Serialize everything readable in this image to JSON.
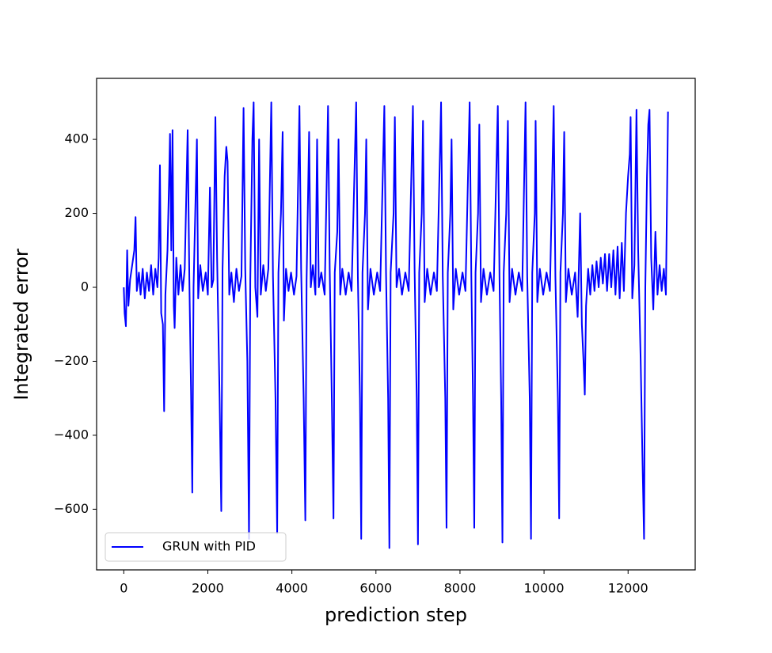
{
  "chart_data": {
    "type": "line",
    "xlabel": "prediction step",
    "ylabel": "Integrated error",
    "x": [
      0,
      20,
      50,
      80,
      110,
      150,
      200,
      250,
      280,
      310,
      360,
      400,
      450,
      500,
      550,
      600,
      650,
      700,
      750,
      800,
      830,
      860,
      890,
      930,
      960,
      990,
      1040,
      1080,
      1100,
      1130,
      1160,
      1190,
      1210,
      1250,
      1300,
      1350,
      1400,
      1450,
      1520,
      1560,
      1600,
      1630,
      1660,
      1700,
      1740,
      1770,
      1820,
      1880,
      1950,
      2000,
      2050,
      2090,
      2130,
      2180,
      2220,
      2280,
      2320,
      2350,
      2400,
      2440,
      2470,
      2510,
      2560,
      2620,
      2680,
      2740,
      2800,
      2850,
      2890,
      2940,
      2980,
      3010,
      3060,
      3090,
      3130,
      3180,
      3220,
      3260,
      3320,
      3380,
      3440,
      3510,
      3550,
      3610,
      3650,
      3680,
      3740,
      3780,
      3810,
      3860,
      3920,
      3980,
      4050,
      4110,
      4180,
      4220,
      4280,
      4320,
      4350,
      4410,
      4450,
      4500,
      4560,
      4600,
      4640,
      4700,
      4780,
      4860,
      4900,
      4950,
      4990,
      5020,
      5080,
      5110,
      5150,
      5200,
      5280,
      5350,
      5420,
      5530,
      5570,
      5620,
      5650,
      5680,
      5740,
      5770,
      5810,
      5870,
      5950,
      6030,
      6100,
      6200,
      6240,
      6290,
      6320,
      6350,
      6420,
      6450,
      6490,
      6550,
      6620,
      6700,
      6780,
      6880,
      6920,
      6970,
      7000,
      7030,
      7090,
      7120,
      7160,
      7220,
      7300,
      7380,
      7450,
      7550,
      7590,
      7650,
      7680,
      7710,
      7770,
      7800,
      7840,
      7900,
      7980,
      8060,
      8130,
      8230,
      8270,
      8310,
      8340,
      8370,
      8430,
      8460,
      8500,
      8560,
      8640,
      8720,
      8800,
      8900,
      8940,
      8980,
      9010,
      9040,
      9100,
      9140,
      9180,
      9240,
      9320,
      9400,
      9480,
      9560,
      9600,
      9660,
      9690,
      9720,
      9780,
      9800,
      9840,
      9900,
      9980,
      10060,
      10140,
      10230,
      10270,
      10330,
      10360,
      10390,
      10450,
      10480,
      10520,
      10580,
      10660,
      10740,
      10800,
      10860,
      10900,
      10940,
      10970,
      11000,
      11050,
      11100,
      11150,
      11200,
      11250,
      11300,
      11350,
      11400,
      11450,
      11500,
      11550,
      11600,
      11650,
      11700,
      11750,
      11800,
      11850,
      11900,
      11950,
      12000,
      12040,
      12060,
      12100,
      12150,
      12200,
      12240,
      12300,
      12340,
      12380,
      12410,
      12450,
      12480,
      12510,
      12550,
      12600,
      12650,
      12700,
      12750,
      12800,
      12850,
      12900,
      12950
    ],
    "series": [
      {
        "name": "GRUN with PID",
        "color": "#0000ff",
        "values": [
          0,
          -70,
          -105,
          100,
          -50,
          20,
          60,
          100,
          190,
          -10,
          40,
          -20,
          50,
          -30,
          40,
          -10,
          60,
          -20,
          50,
          0,
          80,
          330,
          -70,
          -100,
          -335,
          -20,
          100,
          300,
          415,
          100,
          425,
          -50,
          -110,
          80,
          -20,
          60,
          -10,
          50,
          425,
          20,
          -280,
          -555,
          0,
          200,
          400,
          -30,
          60,
          -10,
          40,
          -20,
          270,
          0,
          20,
          460,
          80,
          -300,
          -605,
          50,
          300,
          380,
          340,
          -20,
          40,
          -40,
          50,
          -10,
          30,
          485,
          50,
          -200,
          -680,
          20,
          400,
          500,
          0,
          -80,
          400,
          -20,
          60,
          -10,
          50,
          500,
          30,
          -300,
          -665,
          40,
          200,
          420,
          -90,
          50,
          -10,
          40,
          -20,
          30,
          490,
          50,
          -300,
          -630,
          20,
          420,
          0,
          60,
          -20,
          400,
          0,
          40,
          -20,
          490,
          50,
          -300,
          -625,
          40,
          150,
          400,
          -20,
          50,
          -20,
          40,
          -10,
          500,
          30,
          -300,
          -680,
          40,
          200,
          400,
          -60,
          50,
          -20,
          40,
          -10,
          490,
          40,
          -300,
          -705,
          40,
          200,
          460,
          0,
          50,
          -20,
          40,
          -10,
          490,
          50,
          -300,
          -695,
          40,
          200,
          450,
          -40,
          50,
          -20,
          40,
          -10,
          500,
          30,
          -300,
          -650,
          40,
          200,
          400,
          -60,
          50,
          -20,
          40,
          -10,
          500,
          30,
          -300,
          -650,
          40,
          200,
          440,
          -40,
          50,
          -20,
          40,
          -10,
          490,
          30,
          -300,
          -690,
          40,
          200,
          450,
          -40,
          50,
          -20,
          40,
          -10,
          500,
          30,
          -300,
          -680,
          40,
          200,
          450,
          -40,
          50,
          -20,
          40,
          -10,
          490,
          30,
          -300,
          -625,
          40,
          200,
          420,
          -40,
          50,
          -20,
          40,
          -80,
          200,
          -100,
          -200,
          -290,
          -50,
          50,
          -20,
          60,
          -10,
          70,
          0,
          80,
          10,
          90,
          -10,
          90,
          0,
          100,
          -20,
          110,
          -30,
          120,
          -10,
          200,
          300,
          360,
          460,
          -30,
          60,
          480,
          100,
          -200,
          -450,
          -680,
          0,
          300,
          440,
          480,
          80,
          -60,
          150,
          -20,
          60,
          -10,
          50,
          -20,
          475
        ]
      }
    ],
    "xlim": [
      -647,
      13597
    ],
    "ylim": [
      -764,
      565
    ],
    "xticks": [
      0,
      2000,
      4000,
      6000,
      8000,
      10000,
      12000
    ],
    "yticks": [
      {
        "value": -600,
        "label": "−600"
      },
      {
        "value": -400,
        "label": "−400"
      },
      {
        "value": -200,
        "label": "−200"
      },
      0,
      200,
      400
    ],
    "legend": "lower left"
  }
}
